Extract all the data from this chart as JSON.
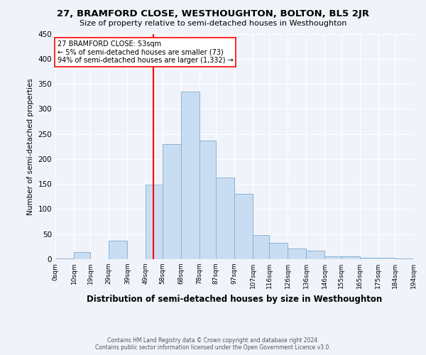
{
  "title": "27, BRAMFORD CLOSE, WESTHOUGHTON, BOLTON, BL5 2JR",
  "subtitle": "Size of property relative to semi-detached houses in Westhoughton",
  "xlabel": "Distribution of semi-detached houses by size in Westhoughton",
  "ylabel": "Number of semi-detached properties",
  "bar_edges": [
    0,
    10,
    19,
    29,
    39,
    49,
    58,
    68,
    78,
    87,
    97,
    107,
    116,
    126,
    136,
    146,
    155,
    165,
    175,
    184,
    194
  ],
  "bar_heights": [
    2,
    14,
    0,
    37,
    0,
    149,
    229,
    335,
    236,
    163,
    130,
    48,
    32,
    21,
    17,
    5,
    5,
    3,
    3,
    2
  ],
  "tick_labels": [
    "0sqm",
    "10sqm",
    "19sqm",
    "29sqm",
    "39sqm",
    "49sqm",
    "58sqm",
    "68sqm",
    "78sqm",
    "87sqm",
    "97sqm",
    "107sqm",
    "116sqm",
    "126sqm",
    "136sqm",
    "146sqm",
    "155sqm",
    "165sqm",
    "175sqm",
    "184sqm",
    "194sqm"
  ],
  "bar_color": "#c9ddf2",
  "bar_edge_color": "#8ab4d8",
  "vline_x": 53,
  "vline_color": "red",
  "annotation_title": "27 BRAMFORD CLOSE: 53sqm",
  "annotation_line1": "← 5% of semi-detached houses are smaller (73)",
  "annotation_line2": "94% of semi-detached houses are larger (1,332) →",
  "annotation_box_color": "white",
  "annotation_box_edge": "red",
  "ylim": [
    0,
    450
  ],
  "yticks": [
    0,
    50,
    100,
    150,
    200,
    250,
    300,
    350,
    400,
    450
  ],
  "footer1": "Contains HM Land Registry data © Crown copyright and database right 2024.",
  "footer2": "Contains public sector information licensed under the Open Government Licence v3.0.",
  "bg_color": "#f0f4fa"
}
